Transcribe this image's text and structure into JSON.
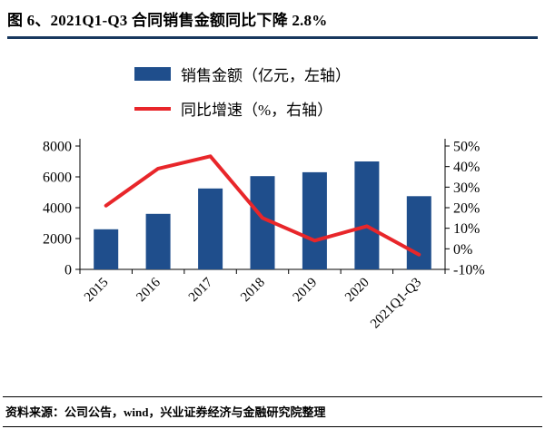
{
  "title": "图 6、2021Q1-Q3 合同销售金额同比下降 2.8%",
  "legend": {
    "bar_label": "销售金额（亿元，左轴）",
    "line_label": "同比增速（%，右轴）"
  },
  "footer": {
    "source_note": "资料来源：公司公告，wind，兴业证券经济与金融研究院整理"
  },
  "colors": {
    "bar": "#1F4E8C",
    "line": "#E8262A",
    "title_rule": "#17375E",
    "axis": "#000000"
  },
  "chart_data": {
    "type": "bar",
    "subtype": "bar+line combo with dual y-axes",
    "title": "2021Q1-Q3 合同销售金额同比下降 2.8%",
    "categories": [
      "2015",
      "2016",
      "2017",
      "2018",
      "2019",
      "2020",
      "2021Q1-Q3"
    ],
    "series": [
      {
        "name": "销售金额（亿元，左轴）",
        "type": "bar",
        "axis": "left",
        "values": [
          2600,
          3600,
          5250,
          6050,
          6300,
          7000,
          4750
        ]
      },
      {
        "name": "同比增速（%，右轴）",
        "type": "line",
        "axis": "right",
        "values": [
          21,
          39,
          45,
          15,
          4,
          11,
          -2.8
        ]
      }
    ],
    "left_axis": {
      "min": 0,
      "max": 8000,
      "ticks": [
        0,
        2000,
        4000,
        6000,
        8000
      ]
    },
    "right_axis": {
      "min": -10,
      "max": 50,
      "ticks": [
        -10,
        0,
        10,
        20,
        30,
        40,
        50
      ],
      "suffix": "%"
    },
    "grid": false,
    "legend_position": "top"
  }
}
